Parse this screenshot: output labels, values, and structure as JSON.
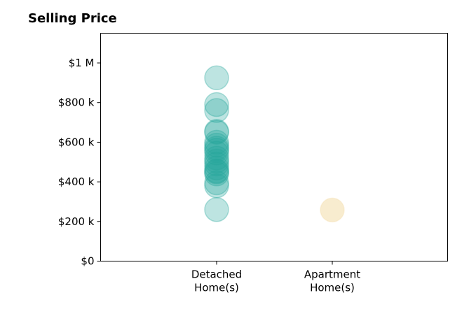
{
  "chart_data": {
    "type": "scatter",
    "title": "Selling Price",
    "xlabel": "",
    "ylabel": "",
    "ylim": [
      0,
      1150000
    ],
    "grid": false,
    "categories": [
      {
        "label": [
          "Detached",
          "Home(s)"
        ]
      },
      {
        "label": [
          "Apartment",
          "Home(s)"
        ]
      }
    ],
    "y_ticks": [
      {
        "value": 0,
        "label": "$0"
      },
      {
        "value": 200000,
        "label": "$200 k"
      },
      {
        "value": 400000,
        "label": "$400 k"
      },
      {
        "value": 600000,
        "label": "$600 k"
      },
      {
        "value": 800000,
        "label": "$800 k"
      },
      {
        "value": 1000000,
        "label": "$1 M"
      }
    ],
    "series": [
      {
        "category": 0,
        "color": "#26a69a",
        "values": [
          925000,
          790000,
          760000,
          655000,
          650000,
          600000,
          585000,
          570000,
          560000,
          545000,
          520000,
          505000,
          490000,
          470000,
          455000,
          450000,
          440000,
          395000,
          380000,
          260000
        ]
      },
      {
        "category": 1,
        "color": "#f3dca8",
        "values": [
          258000
        ]
      }
    ]
  }
}
